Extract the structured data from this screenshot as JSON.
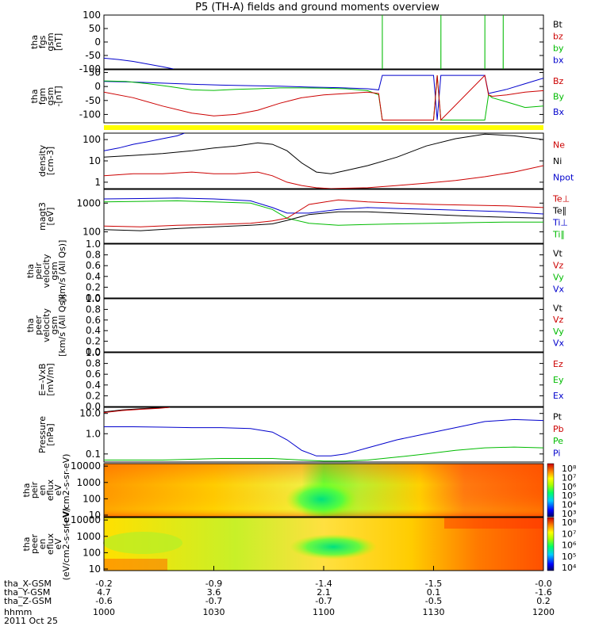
{
  "title": "P5 (TH-A) fields and ground moments overview",
  "chart_data": {
    "type": "line",
    "title": "P5 (TH-A) fields and ground moments overview",
    "date": "2011 Oct 25",
    "x_label": "hhmm",
    "x_ticks": [
      "1000",
      "1030",
      "1100",
      "1130",
      "1200"
    ],
    "x_range": [
      0,
      120
    ],
    "coord_rows": [
      {
        "label": "tha_X-GSM",
        "values": [
          "-0.2",
          "-0.9",
          "-1.4",
          "-1.5",
          "-0.0"
        ]
      },
      {
        "label": "tha_Y-GSM",
        "values": [
          "4.7",
          "3.6",
          "2.1",
          "0.1",
          "-1.6"
        ]
      },
      {
        "label": "tha_Z-GSM",
        "values": [
          "-0.6",
          "-0.7",
          "-0.7",
          "-0.5",
          "0.2"
        ]
      }
    ],
    "colors": {
      "black": "#000000",
      "red": "#cc0000",
      "green": "#00bb00",
      "blue": "#0000cc",
      "yellow": "#ffff00"
    },
    "panels": [
      {
        "id": "fgs",
        "ylabel": [
          "tha",
          "fgs",
          "gsm",
          "[nT]"
        ],
        "ylim": [
          -100,
          100
        ],
        "yticks": [
          "100",
          "50",
          "0",
          "-50",
          "-100"
        ],
        "legend": [
          {
            "text": "Bt",
            "color": "black"
          },
          {
            "text": "bz",
            "color": "red"
          },
          {
            "text": "by",
            "color": "green"
          },
          {
            "text": "bx",
            "color": "blue"
          }
        ],
        "series": [
          {
            "name": "bx",
            "color": "blue",
            "x": [
              0,
              4,
              8,
              12,
              16,
              19
            ],
            "y": [
              -60,
              -65,
              -72,
              -82,
              -92,
              -100
            ]
          },
          {
            "name": "by",
            "color": "green",
            "x": [
              76,
              76.01,
              76.02
            ],
            "y": [
              -100,
              100,
              -100
            ]
          },
          {
            "name": "by",
            "color": "green",
            "x": [
              92,
              92.01,
              92.02
            ],
            "y": [
              -100,
              100,
              -100
            ]
          },
          {
            "name": "by",
            "color": "green",
            "x": [
              104,
              104.01,
              104.02
            ],
            "y": [
              -100,
              100,
              -100
            ]
          },
          {
            "name": "by",
            "color": "green",
            "x": [
              109,
              109.01,
              109.02
            ],
            "y": [
              -100,
              100,
              -100
            ]
          }
        ]
      },
      {
        "id": "fgm",
        "ylabel": [
          "tha",
          "fgm",
          "gsm",
          "-[nT]"
        ],
        "ylim": [
          -130,
          60
        ],
        "yticks": [
          "50",
          "0",
          "-50",
          "-100"
        ],
        "legend": [
          {
            "text": "Bz",
            "color": "red"
          },
          {
            "text": "By",
            "color": "green"
          },
          {
            "text": "Bx",
            "color": "blue"
          }
        ],
        "series": [
          {
            "name": "Bx",
            "color": "blue",
            "x": [
              0,
              8,
              16,
              24,
              32,
              40,
              48,
              56,
              64,
              72,
              75,
              76,
              90,
              91,
              92,
              104,
              105,
              106,
              110,
              115,
              120
            ],
            "y": [
              18,
              16,
              12,
              8,
              5,
              3,
              1,
              -2,
              -4,
              -8,
              -12,
              40,
              40,
              -120,
              40,
              40,
              -25,
              -22,
              -10,
              10,
              30
            ]
          },
          {
            "name": "By",
            "color": "green",
            "x": [
              0,
              6,
              12,
              18,
              24,
              30,
              36,
              42,
              48,
              54,
              60,
              66,
              72,
              75,
              76,
              90,
              91,
              92,
              104,
              105,
              106,
              110,
              115,
              120
            ],
            "y": [
              20,
              18,
              10,
              0,
              -12,
              -14,
              -10,
              -8,
              -5,
              -5,
              -6,
              -8,
              -15,
              -30,
              -120,
              -120,
              40,
              -120,
              -120,
              -30,
              -40,
              -55,
              -75,
              -70
            ]
          },
          {
            "name": "Bz",
            "color": "red",
            "x": [
              0,
              8,
              16,
              24,
              30,
              36,
              42,
              48,
              54,
              60,
              66,
              72,
              75,
              76,
              90,
              91,
              92,
              104,
              105,
              106,
              110,
              115,
              120
            ],
            "y": [
              -20,
              -40,
              -70,
              -95,
              -105,
              -100,
              -85,
              -60,
              -40,
              -30,
              -25,
              -20,
              -25,
              -120,
              -120,
              40,
              -120,
              40,
              -30,
              -35,
              -30,
              -20,
              -15
            ]
          }
        ]
      },
      {
        "id": "density",
        "ylabel": [
          "density",
          "[cm-3]"
        ],
        "ylim": [
          0.5,
          200
        ],
        "scale": "log",
        "yticks": [
          "100",
          "10",
          "1"
        ],
        "legend": [
          {
            "text": "Ne",
            "color": "red"
          },
          {
            "text": "Ni",
            "color": "black"
          },
          {
            "text": "Npot",
            "color": "blue"
          }
        ],
        "series": [
          {
            "name": "Npot",
            "color": "blue",
            "x": [
              0,
              4,
              8,
              12,
              16,
              20,
              22
            ],
            "y": [
              30,
              40,
              60,
              80,
              110,
              150,
              200
            ]
          },
          {
            "name": "Ni",
            "color": "black",
            "x": [
              0,
              8,
              16,
              24,
              30,
              36,
              42,
              46,
              50,
              54,
              58,
              62,
              66,
              72,
              80,
              88,
              96,
              104,
              112,
              120
            ],
            "y": [
              15,
              18,
              22,
              30,
              40,
              50,
              70,
              60,
              30,
              8,
              3,
              2.5,
              3.5,
              6,
              15,
              50,
              110,
              180,
              150,
              100
            ]
          },
          {
            "name": "Ne",
            "color": "red",
            "x": [
              0,
              8,
              16,
              24,
              30,
              36,
              42,
              46,
              50,
              54,
              58,
              62,
              66,
              72,
              80,
              88,
              96,
              104,
              112,
              120
            ],
            "y": [
              2,
              2.5,
              2.5,
              3,
              2.5,
              2.5,
              3,
              2,
              1,
              0.7,
              0.55,
              0.5,
              0.52,
              0.55,
              0.7,
              0.9,
              1.2,
              1.8,
              3,
              6
            ]
          }
        ]
      },
      {
        "id": "temp",
        "ylabel": [
          "magt3",
          "[eV]"
        ],
        "ylim": [
          40,
          3000
        ],
        "scale": "log",
        "yticks": [
          "1000",
          "100"
        ],
        "legend": [
          {
            "text": "Te⊥",
            "color": "red"
          },
          {
            "text": "Te∥",
            "color": "black"
          },
          {
            "text": "Ti⊥",
            "color": "blue"
          },
          {
            "text": "Ti∥",
            "color": "green"
          }
        ],
        "series": [
          {
            "name": "Ti⊥",
            "color": "blue",
            "x": [
              0,
              10,
              20,
              30,
              40,
              46,
              50,
              56,
              64,
              72,
              80,
              90,
              100,
              110,
              120
            ],
            "y": [
              1400,
              1450,
              1500,
              1400,
              1200,
              700,
              450,
              450,
              600,
              700,
              650,
              600,
              550,
              500,
              420
            ]
          },
          {
            "name": "Ti∥",
            "color": "green",
            "x": [
              0,
              10,
              20,
              30,
              40,
              46,
              50,
              56,
              64,
              72,
              80,
              90,
              100,
              110,
              120
            ],
            "y": [
              1100,
              1150,
              1200,
              1100,
              1000,
              600,
              300,
              200,
              170,
              180,
              190,
              200,
              210,
              220,
              220
            ]
          },
          {
            "name": "Te∥",
            "color": "black",
            "x": [
              0,
              10,
              20,
              30,
              40,
              46,
              50,
              56,
              64,
              72,
              80,
              90,
              100,
              110,
              120
            ],
            "y": [
              120,
              110,
              130,
              150,
              170,
              190,
              250,
              400,
              500,
              500,
              450,
              400,
              350,
              320,
              300
            ]
          },
          {
            "name": "Te⊥",
            "color": "red",
            "x": [
              0,
              10,
              20,
              30,
              40,
              46,
              50,
              56,
              64,
              72,
              80,
              90,
              100,
              110,
              120
            ],
            "y": [
              160,
              150,
              170,
              180,
              200,
              240,
              300,
              900,
              1300,
              1100,
              1000,
              900,
              850,
              800,
              700
            ]
          }
        ]
      },
      {
        "id": "peir",
        "ylabel": [
          "tha",
          "peir",
          "velocity",
          "gsm",
          "[km/s (All Qs)]"
        ],
        "ylim": [
          0,
          1
        ],
        "yticks": [
          "1.0",
          "0.8",
          "0.6",
          "0.4",
          "0.2",
          "0.0"
        ],
        "legend": [
          {
            "text": "Vt",
            "color": "black"
          },
          {
            "text": "Vz",
            "color": "red"
          },
          {
            "text": "Vy",
            "color": "green"
          },
          {
            "text": "Vx",
            "color": "blue"
          }
        ],
        "series": []
      },
      {
        "id": "peer",
        "ylabel": [
          "tha",
          "peer",
          "velocity",
          "gsm",
          "[km/s (All Qs)]"
        ],
        "ylim": [
          0,
          1
        ],
        "yticks": [
          "1.0",
          "0.8",
          "0.6",
          "0.4",
          "0.2",
          "0.0"
        ],
        "legend": [
          {
            "text": "Vt",
            "color": "black"
          },
          {
            "text": "Vz",
            "color": "red"
          },
          {
            "text": "Vy",
            "color": "green"
          },
          {
            "text": "Vx",
            "color": "blue"
          }
        ],
        "series": []
      },
      {
        "id": "efield",
        "ylabel": [
          "E=-VxB",
          "[mV/m]"
        ],
        "ylim": [
          0,
          1
        ],
        "yticks": [
          "1.0",
          "0.8",
          "0.6",
          "0.4",
          "0.2",
          "0.0"
        ],
        "legend": [
          {
            "text": "Ez",
            "color": "red"
          },
          {
            "text": "Ey",
            "color": "green"
          },
          {
            "text": "Ex",
            "color": "blue"
          }
        ],
        "series": []
      },
      {
        "id": "pressure",
        "ylabel": [
          "Pressure",
          "[nPa]"
        ],
        "ylim": [
          0.04,
          20
        ],
        "scale": "log",
        "yticks": [
          "10.0",
          "1.0",
          "0.1"
        ],
        "legend": [
          {
            "text": "Pt",
            "color": "black"
          },
          {
            "text": "Pb",
            "color": "red"
          },
          {
            "text": "Pe",
            "color": "green"
          },
          {
            "text": "Pi",
            "color": "blue"
          }
        ],
        "series": [
          {
            "name": "Pt",
            "color": "black",
            "x": [
              0,
              5,
              10,
              15,
              18
            ],
            "y": [
              12,
              15,
              17,
              19,
              20
            ]
          },
          {
            "name": "Pb",
            "color": "red",
            "x": [
              0,
              5,
              10,
              15,
              18
            ],
            "y": [
              11,
              14,
              16,
              18,
              20
            ]
          },
          {
            "name": "Pi",
            "color": "blue",
            "x": [
              0,
              8,
              16,
              24,
              32,
              40,
              46,
              50,
              54,
              58,
              62,
              66,
              72,
              80,
              88,
              96,
              104,
              112,
              120
            ],
            "y": [
              2.2,
              2.2,
              2.1,
              2.0,
              2.0,
              1.8,
              1.2,
              0.5,
              0.15,
              0.08,
              0.08,
              0.1,
              0.2,
              0.5,
              1.0,
              2.0,
              4.0,
              5.0,
              4.5
            ]
          },
          {
            "name": "Pe",
            "color": "green",
            "x": [
              0,
              16,
              32,
              46,
              54,
              60,
              66,
              72,
              80,
              88,
              96,
              104,
              112,
              120
            ],
            "y": [
              0.05,
              0.05,
              0.06,
              0.06,
              0.05,
              0.045,
              0.045,
              0.05,
              0.07,
              0.1,
              0.15,
              0.2,
              0.22,
              0.2
            ]
          }
        ]
      },
      {
        "id": "peir_spec",
        "type": "heatmap",
        "ylabel": [
          "tha",
          "peir",
          "en",
          "eflux",
          "eV",
          "(eV/cm2-s-sr-eV)"
        ],
        "yticks": [
          "10000",
          "1000",
          "100",
          "10"
        ],
        "colorbar_ticks": [
          "10⁸",
          "10⁷",
          "10⁶",
          "10⁵",
          "10⁴",
          "10³"
        ]
      },
      {
        "id": "peer_spec",
        "type": "heatmap",
        "ylabel": [
          "tha",
          "peer",
          "en",
          "eflux",
          "eV",
          "(eV/cm2-s-sr-eV)"
        ],
        "yticks": [
          "10000",
          "1000",
          "100",
          "10"
        ],
        "colorbar_ticks": [
          "10⁸",
          "10⁷",
          "10⁶",
          "10⁵",
          "10⁴"
        ]
      }
    ]
  }
}
